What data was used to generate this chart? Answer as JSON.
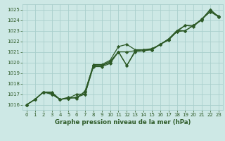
{
  "x": [
    0,
    1,
    2,
    3,
    4,
    5,
    6,
    7,
    8,
    9,
    10,
    11,
    12,
    13,
    14,
    15,
    16,
    17,
    18,
    19,
    20,
    21,
    22,
    23
  ],
  "series1": [
    1016.0,
    1016.5,
    1017.2,
    1017.2,
    1016.5,
    1016.6,
    1017.0,
    1017.0,
    1019.7,
    1019.7,
    1020.0,
    1021.0,
    1019.7,
    1021.1,
    1021.2,
    1021.2,
    1021.7,
    1022.2,
    1022.9,
    1023.0,
    1023.5,
    1024.1,
    1024.8,
    1024.4
  ],
  "series2": [
    1016.0,
    1016.5,
    1017.2,
    1017.0,
    1016.5,
    1016.6,
    1016.7,
    1017.2,
    1019.8,
    1019.8,
    1020.2,
    1021.5,
    1021.7,
    1021.2,
    1021.2,
    1021.3,
    1021.7,
    1022.2,
    1023.0,
    1023.5,
    1023.5,
    1024.0,
    1025.0,
    1024.3
  ],
  "series3": [
    1016.0,
    1016.5,
    1017.2,
    1017.0,
    1016.5,
    1016.7,
    1016.6,
    1017.3,
    1019.7,
    1019.7,
    1020.1,
    1021.0,
    1021.0,
    1021.1,
    1021.2,
    1021.2,
    1021.7,
    1022.1,
    1022.9,
    1023.5,
    1023.4,
    1024.1,
    1025.0,
    1024.3
  ],
  "series4": [
    1016.0,
    1016.5,
    1017.2,
    1017.1,
    1016.5,
    1016.6,
    1016.7,
    1017.0,
    1019.6,
    1019.6,
    1019.9,
    1021.0,
    1019.7,
    1021.0,
    1021.1,
    1021.2,
    1021.7,
    1022.2,
    1023.0,
    1023.0,
    1023.5,
    1024.1,
    1024.8,
    1024.3
  ],
  "line_color": "#2d5a27",
  "bg_color": "#cde8e5",
  "grid_color": "#aacfcc",
  "xlabel": "Graphe pression niveau de la mer (hPa)",
  "ylim": [
    1015.5,
    1025.5
  ],
  "yticks": [
    1016,
    1017,
    1018,
    1019,
    1020,
    1021,
    1022,
    1023,
    1024,
    1025
  ],
  "xticks": [
    0,
    1,
    2,
    3,
    4,
    5,
    6,
    7,
    8,
    9,
    10,
    11,
    12,
    13,
    14,
    15,
    16,
    17,
    18,
    19,
    20,
    21,
    22,
    23
  ],
  "marker": "D",
  "markersize": 2.2,
  "linewidth": 0.9,
  "tick_fontsize": 5.0,
  "xlabel_fontsize": 6.2
}
